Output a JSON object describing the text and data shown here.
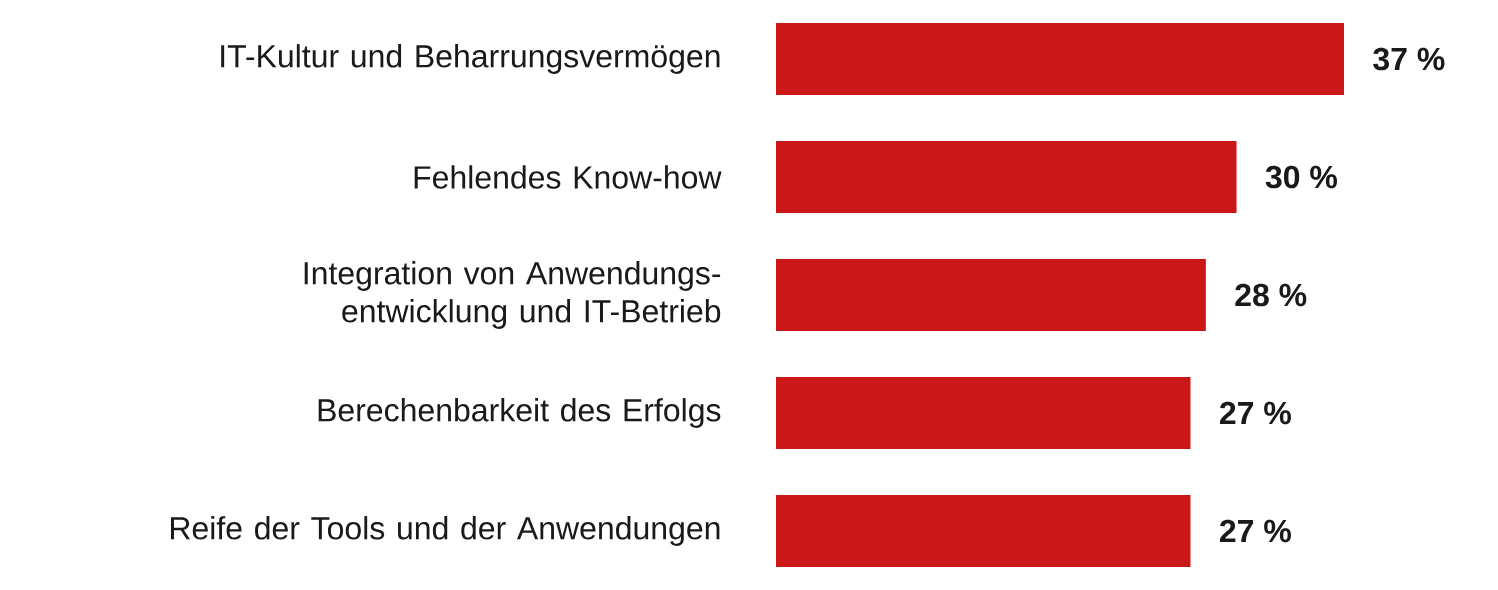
{
  "chart_data": {
    "type": "bar",
    "orientation": "horizontal",
    "categories": [
      "IT-Kultur und Beharrungsvermögen",
      "Fehlendes Know-how",
      "Integration von Anwendungs-entwicklung und IT-Betrieb",
      "Berechenbarkeit des Erfolgs",
      "Reife der Tools und der Anwendungen"
    ],
    "values": [
      37,
      30,
      28,
      27,
      27
    ],
    "value_labels": [
      "37 %",
      "30 %",
      "28 %",
      "27 %",
      "27 %"
    ],
    "color": "#cc1719"
  }
}
